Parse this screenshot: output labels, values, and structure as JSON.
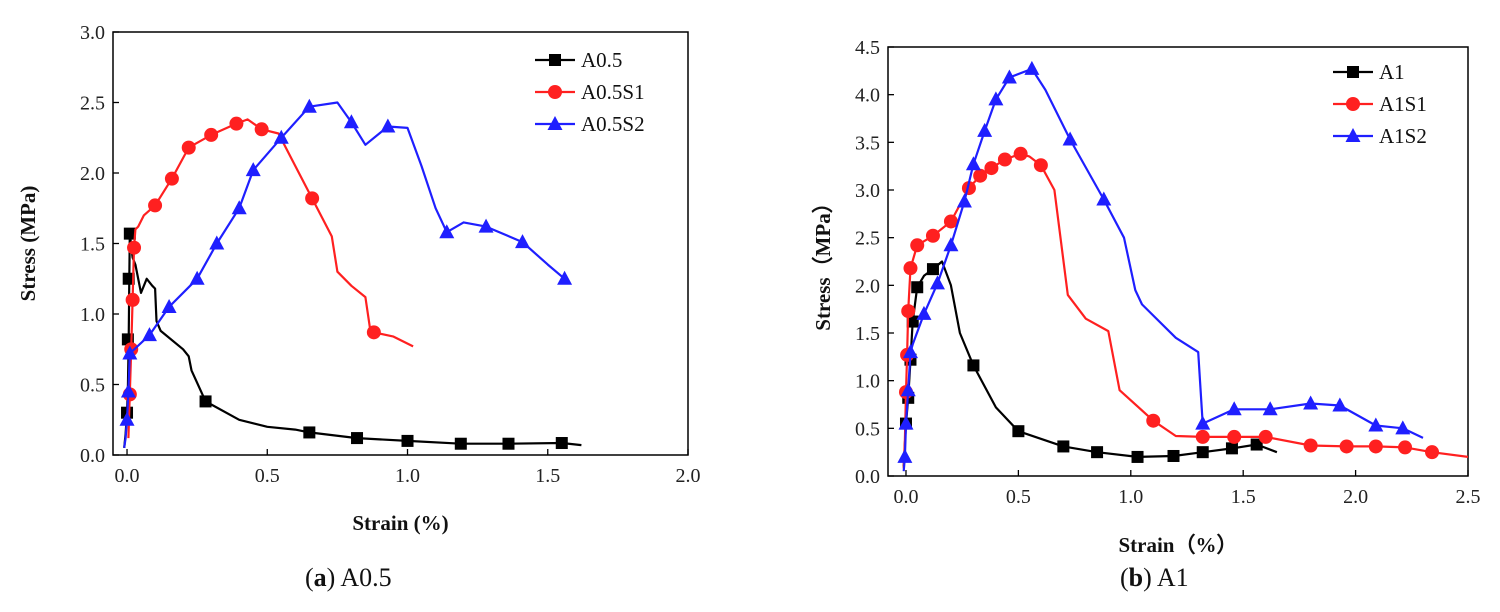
{
  "chart_data": [
    {
      "type": "line",
      "panel": "a",
      "caption_letter": "a",
      "caption_text": "A0.5",
      "xlabel": "Strain (%)",
      "ylabel": "Stress (MPa)",
      "xlim": [
        -0.05,
        2.0
      ],
      "ylim": [
        0,
        3.0
      ],
      "xticks": [
        0.0,
        0.5,
        1.0,
        1.5,
        2.0
      ],
      "xtick_labels": [
        "0.0",
        "0.5",
        "1.0",
        "1.5",
        "2.0"
      ],
      "yticks": [
        0.0,
        0.5,
        1.0,
        1.5,
        2.0,
        2.5,
        3.0
      ],
      "ytick_labels": [
        "0.0",
        "0.5",
        "1.0",
        "1.5",
        "2.0",
        "2.5",
        "3.0"
      ],
      "legend_position": "top-right",
      "series": [
        {
          "name": "A0.5",
          "color": "#000000",
          "marker": "square",
          "x": [
            -0.01,
            -0.005,
            0.0,
            0.003,
            0.006,
            0.008,
            0.01,
            0.02,
            0.03,
            0.05,
            0.07,
            0.09,
            0.1,
            0.105,
            0.12,
            0.2,
            0.22,
            0.23,
            0.28,
            0.4,
            0.5,
            0.6,
            0.65,
            0.82,
            1.0,
            1.19,
            1.36,
            1.55,
            1.62
          ],
          "y": [
            0.05,
            0.15,
            0.3,
            0.48,
            0.82,
            1.25,
            1.57,
            1.4,
            1.35,
            1.15,
            1.25,
            1.2,
            1.18,
            0.95,
            0.88,
            0.75,
            0.7,
            0.6,
            0.38,
            0.25,
            0.2,
            0.18,
            0.16,
            0.12,
            0.1,
            0.08,
            0.08,
            0.085,
            0.07
          ],
          "marker_x": [
            0.0,
            0.003,
            0.006,
            0.01,
            0.28,
            0.65,
            0.82,
            1.0,
            1.19,
            1.36,
            1.55
          ],
          "marker_y": [
            0.3,
            0.82,
            1.25,
            1.57,
            0.38,
            0.16,
            0.12,
            0.1,
            0.08,
            0.08,
            0.085
          ]
        },
        {
          "name": "A0.5S1",
          "color": "#ff2020",
          "marker": "circle",
          "x": [
            0.005,
            0.01,
            0.015,
            0.02,
            0.025,
            0.03,
            0.04,
            0.06,
            0.1,
            0.16,
            0.22,
            0.3,
            0.39,
            0.43,
            0.48,
            0.54,
            0.6,
            0.66,
            0.73,
            0.75,
            0.8,
            0.85,
            0.87,
            0.88,
            0.95,
            1.02
          ],
          "y": [
            0.12,
            0.43,
            0.75,
            1.1,
            1.47,
            1.6,
            1.62,
            1.7,
            1.77,
            1.96,
            2.18,
            2.27,
            2.35,
            2.38,
            2.31,
            2.28,
            2.05,
            1.82,
            1.55,
            1.3,
            1.2,
            1.12,
            0.85,
            0.87,
            0.84,
            0.77
          ],
          "marker_x": [
            0.01,
            0.015,
            0.02,
            0.025,
            0.1,
            0.16,
            0.22,
            0.3,
            0.39,
            0.48,
            0.66,
            0.88
          ],
          "marker_y": [
            0.43,
            0.75,
            1.1,
            1.47,
            1.77,
            1.96,
            2.18,
            2.27,
            2.35,
            2.31,
            1.82,
            0.87
          ]
        },
        {
          "name": "A0.5S2",
          "color": "#1f1fff",
          "marker": "triangle",
          "x": [
            -0.01,
            -0.005,
            0.0,
            0.005,
            0.01,
            0.08,
            0.15,
            0.25,
            0.32,
            0.4,
            0.45,
            0.55,
            0.65,
            0.75,
            0.8,
            0.85,
            0.93,
            1.0,
            1.05,
            1.1,
            1.14,
            1.2,
            1.28,
            1.41,
            1.5,
            1.56
          ],
          "y": [
            0.05,
            0.12,
            0.25,
            0.45,
            0.72,
            0.85,
            1.05,
            1.25,
            1.5,
            1.75,
            2.02,
            2.25,
            2.47,
            2.5,
            2.36,
            2.2,
            2.33,
            2.32,
            2.05,
            1.75,
            1.58,
            1.65,
            1.62,
            1.51,
            1.35,
            1.25
          ],
          "marker_x": [
            0.0,
            0.005,
            0.01,
            0.08,
            0.15,
            0.25,
            0.32,
            0.4,
            0.45,
            0.55,
            0.65,
            0.8,
            0.93,
            1.14,
            1.28,
            1.41,
            1.56
          ],
          "marker_y": [
            0.25,
            0.45,
            0.72,
            0.85,
            1.05,
            1.25,
            1.5,
            1.75,
            2.02,
            2.25,
            2.47,
            2.36,
            2.33,
            1.58,
            1.62,
            1.51,
            1.25
          ]
        }
      ]
    },
    {
      "type": "line",
      "panel": "b",
      "caption_letter": "b",
      "caption_text": "A1",
      "xlabel": "Strain（%）",
      "ylabel": "Stress（MPa）",
      "xlim": [
        -0.08,
        2.5
      ],
      "ylim": [
        0,
        4.5
      ],
      "xticks": [
        0.0,
        0.5,
        1.0,
        1.5,
        2.0,
        2.5
      ],
      "xtick_labels": [
        "0.0",
        "0.5",
        "1.0",
        "1.5",
        "2.0",
        "2.5"
      ],
      "yticks": [
        0.0,
        0.5,
        1.0,
        1.5,
        2.0,
        2.5,
        3.0,
        3.5,
        4.0,
        4.5
      ],
      "ytick_labels": [
        "0.0",
        "0.5",
        "1.0",
        "1.5",
        "2.0",
        "2.5",
        "3.0",
        "3.5",
        "4.0",
        "4.5"
      ],
      "legend_position": "top-right",
      "series": [
        {
          "name": "A1",
          "color": "#000000",
          "marker": "square",
          "x": [
            -0.01,
            0.0,
            0.01,
            0.02,
            0.03,
            0.05,
            0.08,
            0.12,
            0.16,
            0.2,
            0.24,
            0.3,
            0.4,
            0.5,
            0.7,
            0.85,
            1.03,
            1.19,
            1.32,
            1.45,
            1.56,
            1.65
          ],
          "y": [
            0.1,
            0.55,
            0.82,
            1.22,
            1.62,
            1.98,
            2.1,
            2.17,
            2.25,
            2.0,
            1.5,
            1.16,
            0.72,
            0.47,
            0.31,
            0.25,
            0.2,
            0.21,
            0.25,
            0.29,
            0.33,
            0.25
          ],
          "marker_x": [
            0.0,
            0.01,
            0.02,
            0.03,
            0.05,
            0.12,
            0.3,
            0.5,
            0.7,
            0.85,
            1.03,
            1.19,
            1.32,
            1.45,
            1.56
          ],
          "marker_y": [
            0.55,
            0.82,
            1.22,
            1.62,
            1.98,
            2.17,
            1.16,
            0.47,
            0.31,
            0.25,
            0.2,
            0.21,
            0.25,
            0.29,
            0.33
          ]
        },
        {
          "name": "A1S1",
          "color": "#ff2020",
          "marker": "circle",
          "x": [
            -0.01,
            -0.005,
            0.0,
            0.005,
            0.01,
            0.02,
            0.05,
            0.12,
            0.2,
            0.28,
            0.33,
            0.38,
            0.44,
            0.51,
            0.55,
            0.6,
            0.66,
            0.72,
            0.8,
            0.9,
            0.95,
            1.1,
            1.2,
            1.32,
            1.46,
            1.6,
            1.8,
            1.96,
            2.09,
            2.22,
            2.34,
            2.5
          ],
          "y": [
            0.08,
            0.38,
            0.88,
            1.27,
            1.73,
            2.18,
            2.42,
            2.52,
            2.67,
            3.02,
            3.15,
            3.23,
            3.32,
            3.38,
            3.35,
            3.26,
            3.0,
            1.9,
            1.65,
            1.52,
            0.9,
            0.58,
            0.42,
            0.41,
            0.41,
            0.41,
            0.32,
            0.31,
            0.31,
            0.3,
            0.25,
            0.2
          ],
          "marker_x": [
            0.0,
            0.005,
            0.01,
            0.02,
            0.05,
            0.12,
            0.2,
            0.28,
            0.33,
            0.38,
            0.44,
            0.51,
            0.6,
            1.1,
            1.32,
            1.46,
            1.6,
            1.8,
            1.96,
            2.09,
            2.22,
            2.34
          ],
          "marker_y": [
            0.88,
            1.27,
            1.73,
            2.18,
            2.42,
            2.52,
            2.67,
            3.02,
            3.15,
            3.23,
            3.32,
            3.38,
            3.26,
            0.58,
            0.41,
            0.41,
            0.41,
            0.32,
            0.31,
            0.31,
            0.3,
            0.25
          ]
        },
        {
          "name": "A1S2",
          "color": "#1f1fff",
          "marker": "triangle",
          "x": [
            -0.01,
            -0.005,
            0.0,
            0.01,
            0.02,
            0.03,
            0.08,
            0.14,
            0.2,
            0.26,
            0.3,
            0.35,
            0.4,
            0.46,
            0.56,
            0.62,
            0.73,
            0.88,
            0.97,
            1.02,
            1.05,
            1.2,
            1.3,
            1.32,
            1.46,
            1.62,
            1.8,
            1.93,
            2.09,
            2.21,
            2.3
          ],
          "y": [
            0.05,
            0.2,
            0.55,
            0.9,
            1.3,
            1.38,
            1.7,
            2.02,
            2.42,
            2.88,
            3.27,
            3.62,
            3.95,
            4.18,
            4.27,
            4.05,
            3.53,
            2.9,
            2.5,
            1.95,
            1.8,
            1.45,
            1.3,
            0.55,
            0.7,
            0.7,
            0.76,
            0.74,
            0.53,
            0.5,
            0.4
          ],
          "marker_x": [
            -0.005,
            0.0,
            0.01,
            0.02,
            0.08,
            0.14,
            0.2,
            0.26,
            0.3,
            0.35,
            0.4,
            0.46,
            0.56,
            0.73,
            0.88,
            1.32,
            1.46,
            1.62,
            1.8,
            1.93,
            2.09,
            2.21
          ],
          "marker_y": [
            0.2,
            0.55,
            0.9,
            1.3,
            1.7,
            2.02,
            2.42,
            2.88,
            3.27,
            3.62,
            3.95,
            4.18,
            4.27,
            3.53,
            2.9,
            0.55,
            0.7,
            0.7,
            0.76,
            0.74,
            0.53,
            0.5
          ]
        }
      ]
    }
  ]
}
